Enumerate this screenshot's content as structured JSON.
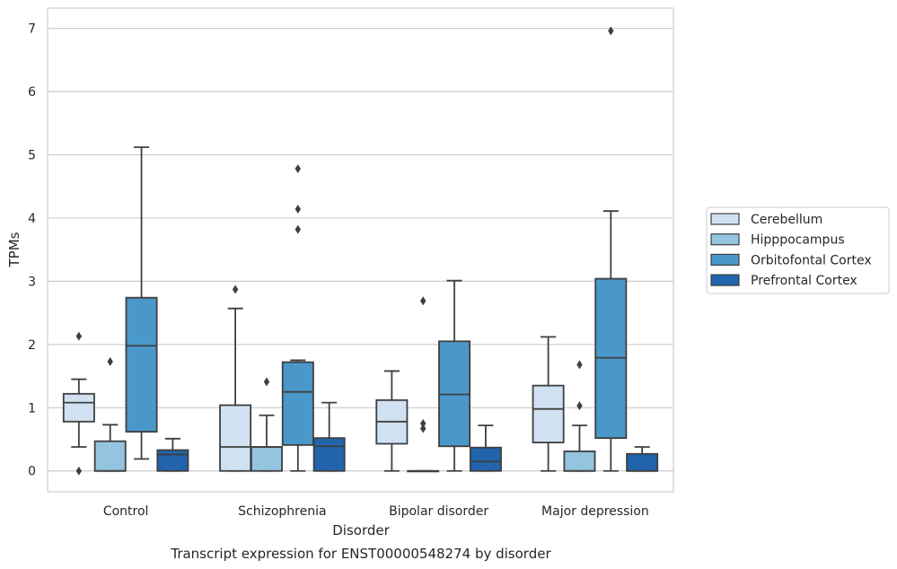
{
  "chart_data": {
    "type": "box",
    "title": "Transcript expression for ENST00000548274 by disorder",
    "xlabel": "Disorder",
    "ylabel": "TPMs",
    "ylim": [
      -0.33,
      7.32
    ],
    "yticks": [
      0,
      1,
      2,
      3,
      4,
      5,
      6,
      7
    ],
    "grid": "horizontal",
    "legend_position": "right",
    "categories": [
      "Control",
      "Schizophrenia",
      "Bipolar disorder",
      "Major depression"
    ],
    "series": [
      {
        "name": "Cerebellum",
        "color": "#d0e1f2",
        "boxes": [
          {
            "whislo": 0.38,
            "q1": 0.78,
            "med": 1.08,
            "q3": 1.22,
            "whishi": 1.45,
            "fliers": [
              2.13,
              0.0
            ]
          },
          {
            "whislo": 0.0,
            "q1": 0.0,
            "med": 0.38,
            "q3": 1.04,
            "whishi": 2.57,
            "fliers": [
              2.87
            ]
          },
          {
            "whislo": 0.0,
            "q1": 0.43,
            "med": 0.78,
            "q3": 1.12,
            "whishi": 1.58,
            "fliers": []
          },
          {
            "whislo": 0.0,
            "q1": 0.45,
            "med": 0.98,
            "q3": 1.35,
            "whishi": 2.12,
            "fliers": []
          }
        ]
      },
      {
        "name": "Hipppocampus",
        "color": "#94c4df",
        "boxes": [
          {
            "whislo": 0.0,
            "q1": 0.0,
            "med": 0.0,
            "q3": 0.47,
            "whishi": 0.73,
            "fliers": [
              1.73
            ]
          },
          {
            "whislo": 0.0,
            "q1": 0.0,
            "med": 0.38,
            "q3": 0.38,
            "whishi": 0.88,
            "fliers": [
              1.41
            ]
          },
          {
            "whislo": 0.0,
            "q1": 0.0,
            "med": 0.0,
            "q3": 0.0,
            "whishi": 0.0,
            "fliers": [
              2.69,
              0.75,
              0.67
            ]
          },
          {
            "whislo": 0.0,
            "q1": 0.0,
            "med": 0.0,
            "q3": 0.31,
            "whishi": 0.72,
            "fliers": [
              1.68,
              1.03
            ]
          }
        ]
      },
      {
        "name": "Orbitofontal Cortex",
        "color": "#4a98c9",
        "boxes": [
          {
            "whislo": 0.19,
            "q1": 0.62,
            "med": 1.98,
            "q3": 2.74,
            "whishi": 5.12,
            "fliers": []
          },
          {
            "whislo": 0.0,
            "q1": 0.41,
            "med": 1.25,
            "q3": 1.72,
            "whishi": 1.75,
            "fliers": [
              4.78,
              4.14,
              3.82
            ]
          },
          {
            "whislo": 0.0,
            "q1": 0.39,
            "med": 1.21,
            "q3": 2.05,
            "whishi": 3.01,
            "fliers": []
          },
          {
            "whislo": 0.0,
            "q1": 0.52,
            "med": 1.79,
            "q3": 3.04,
            "whishi": 4.11,
            "fliers": [
              6.96
            ]
          }
        ]
      },
      {
        "name": "Prefrontal Cortex",
        "color": "#2164ab",
        "boxes": [
          {
            "whislo": 0.0,
            "q1": 0.0,
            "med": 0.26,
            "q3": 0.33,
            "whishi": 0.51,
            "fliers": []
          },
          {
            "whislo": 0.0,
            "q1": 0.0,
            "med": 0.39,
            "q3": 0.52,
            "whishi": 1.08,
            "fliers": []
          },
          {
            "whislo": 0.0,
            "q1": 0.0,
            "med": 0.15,
            "q3": 0.37,
            "whishi": 0.72,
            "fliers": []
          },
          {
            "whislo": 0.0,
            "q1": 0.0,
            "med": 0.0,
            "q3": 0.27,
            "whishi": 0.38,
            "fliers": []
          }
        ]
      }
    ]
  }
}
